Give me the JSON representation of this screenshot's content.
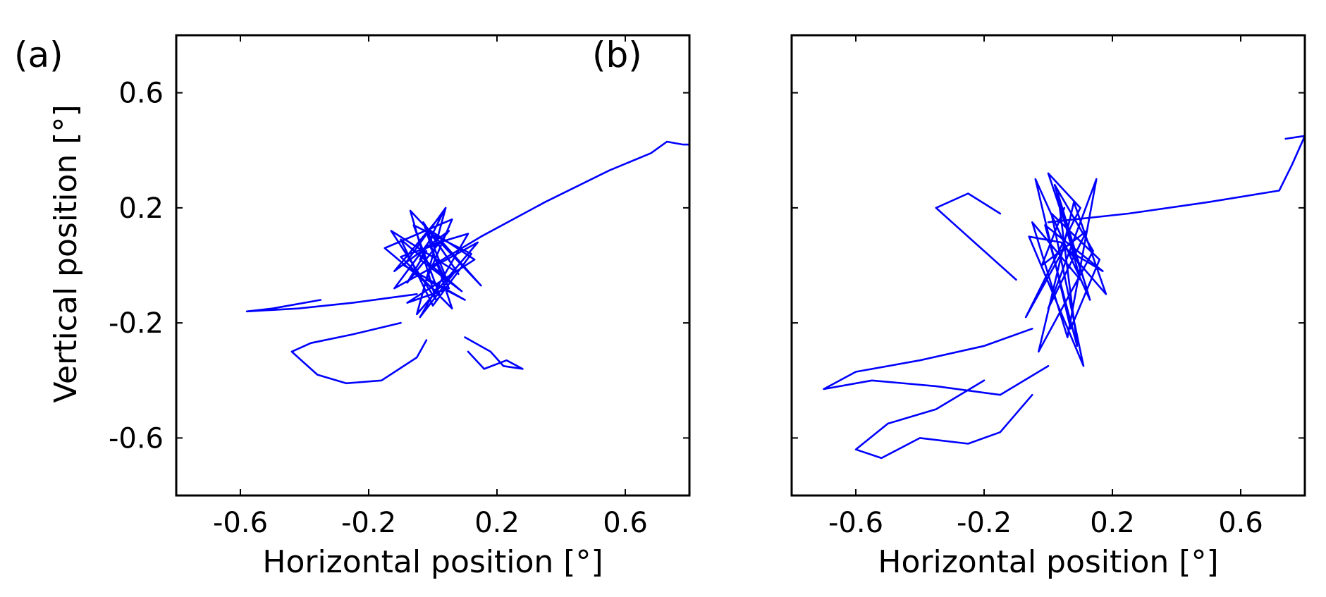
{
  "figure": {
    "ylabel": "Vertical position [°]"
  },
  "chart_data": [
    {
      "type": "line",
      "panel_label": "(a)",
      "xlabel": "Horizontal position [°]",
      "ylabel": "Vertical position [°]",
      "xlim": [
        -0.8,
        0.8
      ],
      "ylim": [
        -0.8,
        0.8
      ],
      "xticks": [
        -0.6,
        -0.2,
        0.2,
        0.6
      ],
      "yticks": [
        -0.6,
        -0.2,
        0.2,
        0.6
      ],
      "xtick_labels": [
        "-0.6",
        "-0.2",
        "0.2",
        "0.6"
      ],
      "ytick_labels": [
        "-0.6",
        "-0.2",
        "0.2",
        "0.6"
      ],
      "grid": false,
      "color": "#0000ff",
      "series": [
        {
          "x": [
            -0.02,
            -0.08,
            0.05,
            -0.12,
            0.03,
            -0.04,
            0.09,
            -0.1,
            0.0,
            0.12,
            -0.06,
            0.02,
            -0.15,
            0.06,
            -0.02,
            0.1,
            -0.09,
            0.04,
            -0.05,
            0.14,
            -0.12,
            0.0,
            0.08,
            -0.03,
            0.06,
            -0.1,
            0.03,
            0.15,
            -0.07,
            0.01,
            -0.13,
            0.07,
            -0.04,
            0.11,
            -0.01,
            0.05,
            -0.08,
            0.13,
            -0.02,
            0.04
          ],
          "y": [
            0.05,
            -0.06,
            0.12,
            -0.02,
            0.18,
            0.02,
            -0.09,
            0.09,
            -0.14,
            0.04,
            0.14,
            -0.1,
            0.06,
            0.16,
            -0.05,
            -0.12,
            0.0,
            0.2,
            -0.17,
            0.08,
            -0.08,
            0.1,
            -0.03,
            0.15,
            -0.15,
            0.03,
            0.08,
            -0.07,
            0.19,
            -0.12,
            0.12,
            -0.02,
            -0.18,
            0.11,
            0.07,
            -0.08,
            -0.13,
            0.02,
            0.13,
            -0.04
          ]
        },
        {
          "x": [
            0.0,
            0.15,
            0.35,
            0.55,
            0.68,
            0.73,
            0.78,
            0.8
          ],
          "y": [
            0.0,
            0.1,
            0.22,
            0.33,
            0.39,
            0.43,
            0.42,
            0.42
          ]
        },
        {
          "x": [
            -0.05,
            -0.25,
            -0.42,
            -0.58,
            -0.5,
            -0.35
          ],
          "y": [
            -0.1,
            -0.13,
            -0.15,
            -0.16,
            -0.15,
            -0.12
          ]
        },
        {
          "x": [
            -0.1,
            -0.25,
            -0.38,
            -0.44,
            -0.36,
            -0.27,
            -0.16,
            -0.05,
            -0.02
          ],
          "y": [
            -0.2,
            -0.24,
            -0.27,
            -0.3,
            -0.38,
            -0.41,
            -0.4,
            -0.32,
            -0.26
          ]
        },
        {
          "x": [
            0.1,
            0.18,
            0.22,
            0.28,
            0.23,
            0.16,
            0.11
          ],
          "y": [
            -0.25,
            -0.3,
            -0.35,
            -0.36,
            -0.33,
            -0.36,
            -0.3
          ]
        }
      ]
    },
    {
      "type": "line",
      "panel_label": "(b)",
      "xlabel": "Horizontal position [°]",
      "ylabel": "",
      "xlim": [
        -0.8,
        0.8
      ],
      "ylim": [
        -0.8,
        0.8
      ],
      "xticks": [
        -0.6,
        -0.2,
        0.2,
        0.6
      ],
      "yticks": [
        -0.6,
        -0.2,
        0.2,
        0.6
      ],
      "xtick_labels": [
        "-0.6",
        "-0.2",
        "0.2",
        "0.6"
      ],
      "ytick_labels": [
        "",
        "",
        "",
        ""
      ],
      "grid": false,
      "color": "#0000ff",
      "series": [
        {
          "x": [
            0.05,
            -0.02,
            0.12,
            0.0,
            0.15,
            0.06,
            -0.05,
            0.1,
            0.02,
            0.14,
            -0.03,
            0.08,
            0.18,
            0.04,
            -0.06,
            0.11,
            0.01,
            0.16,
            0.07,
            -0.04,
            0.13,
            0.03,
            0.09,
            -0.01,
            0.17,
            0.05,
            -0.07,
            0.1,
            0.0,
            0.12
          ],
          "y": [
            0.2,
            0.0,
            0.12,
            -0.15,
            0.3,
            -0.25,
            0.15,
            -0.05,
            0.28,
            0.05,
            -0.3,
            0.22,
            -0.1,
            0.08,
            0.1,
            -0.35,
            0.18,
            0.02,
            -0.22,
            0.3,
            -0.12,
            0.25,
            -0.28,
            0.14,
            -0.02,
            0.06,
            -0.18,
            0.2,
            0.32,
            -0.08
          ]
        },
        {
          "x": [
            0.0,
            0.25,
            0.5,
            0.72,
            0.76,
            0.8,
            0.74
          ],
          "y": [
            0.15,
            0.18,
            0.22,
            0.26,
            0.35,
            0.45,
            0.44
          ]
        },
        {
          "x": [
            -0.05,
            -0.2,
            -0.4,
            -0.6,
            -0.7,
            -0.55,
            -0.35,
            -0.15,
            0.0
          ],
          "y": [
            -0.22,
            -0.28,
            -0.33,
            -0.37,
            -0.43,
            -0.4,
            -0.42,
            -0.45,
            -0.35
          ]
        },
        {
          "x": [
            -0.2,
            -0.35,
            -0.5,
            -0.6,
            -0.52,
            -0.4,
            -0.25,
            -0.15,
            -0.05
          ],
          "y": [
            -0.4,
            -0.5,
            -0.55,
            -0.64,
            -0.67,
            -0.6,
            -0.62,
            -0.58,
            -0.45
          ]
        },
        {
          "x": [
            -0.1,
            -0.2,
            -0.3,
            -0.35,
            -0.25,
            -0.15
          ],
          "y": [
            -0.05,
            0.05,
            0.15,
            0.2,
            0.25,
            0.18
          ]
        }
      ]
    }
  ]
}
